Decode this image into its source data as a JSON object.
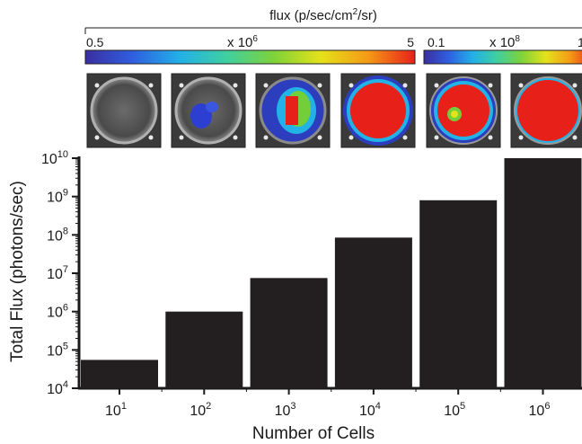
{
  "chart_data": {
    "type": "bar",
    "xlabel": "Number of Cells",
    "ylabel": "Total Flux (photons/sec)",
    "yscale": "log",
    "ylim": [
      10000,
      10000000000
    ],
    "y_tick_labels": [
      {
        "base": "10",
        "exp": "4"
      },
      {
        "base": "10",
        "exp": "5"
      },
      {
        "base": "10",
        "exp": "6"
      },
      {
        "base": "10",
        "exp": "7"
      },
      {
        "base": "10",
        "exp": "8"
      },
      {
        "base": "10",
        "exp": "9"
      },
      {
        "base": "10",
        "exp": "10"
      }
    ],
    "categories": [
      {
        "base": "10",
        "exp": "1"
      },
      {
        "base": "10",
        "exp": "2"
      },
      {
        "base": "10",
        "exp": "3"
      },
      {
        "base": "10",
        "exp": "4"
      },
      {
        "base": "10",
        "exp": "5"
      },
      {
        "base": "10",
        "exp": "6"
      }
    ],
    "values": [
      55000,
      1000000,
      7500000,
      85000000,
      800000000,
      10000000000
    ],
    "bar_color": "#231f20"
  },
  "colorbar": {
    "title_prefix": "flux (p/sec/cm",
    "title_sup": "2",
    "title_suffix": "/sr)",
    "scales": [
      {
        "min": "0.5",
        "max": "5",
        "mult_prefix": "x 10",
        "mult_exp": "6"
      },
      {
        "min": "0.1",
        "max": "1",
        "mult_prefix": "x 10",
        "mult_exp": "8"
      }
    ],
    "gradient": [
      "#3b2ea0",
      "#2f5ee0",
      "#22b0e8",
      "#3fd0a0",
      "#7ed23a",
      "#e4e21a",
      "#f59a16",
      "#e8201a"
    ]
  },
  "wells": [
    {
      "signal": "none"
    },
    {
      "signal": "faint-blue"
    },
    {
      "signal": "partial"
    },
    {
      "signal": "mostly-red"
    },
    {
      "signal": "ring"
    },
    {
      "signal": "full-red"
    }
  ]
}
